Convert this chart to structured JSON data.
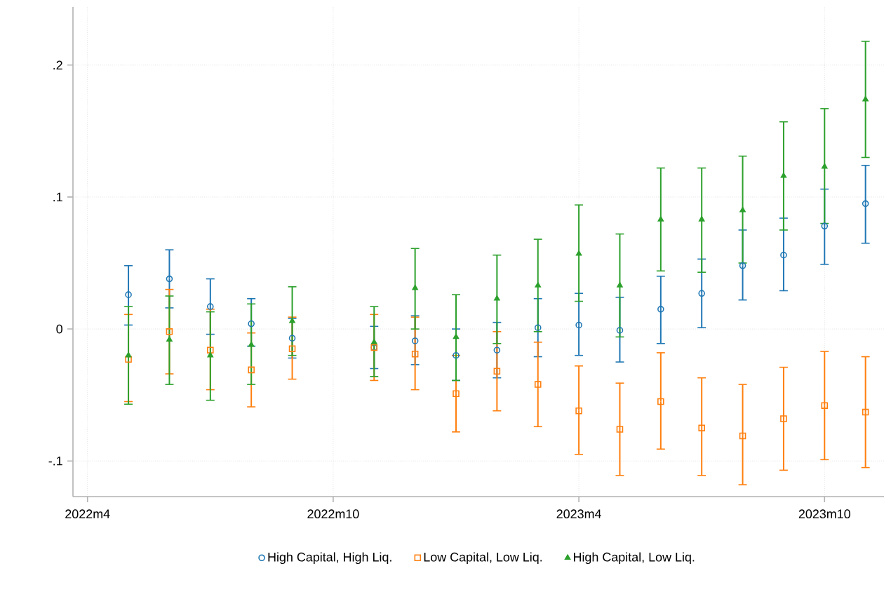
{
  "chart_data": {
    "type": "scatter",
    "x": [
      "2022-05",
      "2022-06",
      "2022-07",
      "2022-08",
      "2022-09",
      "2022-11",
      "2022-12",
      "2023-01",
      "2023-02",
      "2023-03",
      "2023-04",
      "2023-05",
      "2023-06",
      "2023-07",
      "2023-08",
      "2023-09",
      "2023-10",
      "2023-11"
    ],
    "series": [
      {
        "name": "High Capital, High Liq.",
        "color": "#1f77b4",
        "marker": "circle",
        "values": [
          0.026,
          0.038,
          0.017,
          0.004,
          -0.007,
          -0.014,
          -0.009,
          -0.02,
          -0.016,
          0.001,
          0.003,
          -0.001,
          0.015,
          0.027,
          0.048,
          0.056,
          0.078,
          0.095
        ],
        "errors": [
          [
            0.003,
            0.048
          ],
          [
            0.016,
            0.06
          ],
          [
            -0.004,
            0.038
          ],
          [
            -0.013,
            0.023
          ],
          [
            -0.022,
            0.008
          ],
          [
            -0.03,
            0.002
          ],
          [
            -0.027,
            0.01
          ],
          [
            -0.039,
            0.0
          ],
          [
            -0.037,
            0.005
          ],
          [
            -0.021,
            0.023
          ],
          [
            -0.02,
            0.027
          ],
          [
            -0.025,
            0.024
          ],
          [
            -0.011,
            0.04
          ],
          [
            0.001,
            0.053
          ],
          [
            0.022,
            0.075
          ],
          [
            0.029,
            0.084
          ],
          [
            0.049,
            0.106
          ],
          [
            0.065,
            0.124
          ]
        ]
      },
      {
        "name": "Low Capital, Low Liq.",
        "color": "#ff7f0e",
        "marker": "square",
        "values": [
          -0.023,
          -0.002,
          -0.016,
          -0.031,
          -0.015,
          -0.014,
          -0.019,
          -0.049,
          -0.032,
          -0.042,
          -0.062,
          -0.076,
          -0.055,
          -0.075,
          -0.081,
          -0.068,
          -0.058,
          -0.063
        ],
        "errors": [
          [
            -0.055,
            0.011
          ],
          [
            -0.034,
            0.03
          ],
          [
            -0.046,
            0.015
          ],
          [
            -0.059,
            -0.003
          ],
          [
            -0.038,
            0.009
          ],
          [
            -0.039,
            0.011
          ],
          [
            -0.046,
            0.009
          ],
          [
            -0.078,
            -0.02
          ],
          [
            -0.062,
            -0.002
          ],
          [
            -0.074,
            -0.01
          ],
          [
            -0.095,
            -0.028
          ],
          [
            -0.111,
            -0.041
          ],
          [
            -0.091,
            -0.018
          ],
          [
            -0.111,
            -0.037
          ],
          [
            -0.118,
            -0.042
          ],
          [
            -0.107,
            -0.029
          ],
          [
            -0.099,
            -0.017
          ],
          [
            -0.105,
            -0.021
          ]
        ]
      },
      {
        "name": "High Capital, Low Liq.",
        "color": "#2ca02c",
        "marker": "triangle",
        "values": [
          -0.02,
          -0.008,
          -0.02,
          -0.012,
          0.006,
          -0.01,
          0.031,
          -0.006,
          0.023,
          0.033,
          0.057,
          0.033,
          0.083,
          0.083,
          0.09,
          0.116,
          0.123,
          0.174
        ],
        "errors": [
          [
            -0.057,
            0.017
          ],
          [
            -0.042,
            0.025
          ],
          [
            -0.054,
            0.013
          ],
          [
            -0.042,
            0.019
          ],
          [
            -0.02,
            0.032
          ],
          [
            -0.036,
            0.017
          ],
          [
            0.0,
            0.061
          ],
          [
            -0.039,
            0.026
          ],
          [
            -0.011,
            0.056
          ],
          [
            -0.002,
            0.068
          ],
          [
            0.021,
            0.094
          ],
          [
            -0.006,
            0.072
          ],
          [
            0.044,
            0.122
          ],
          [
            0.043,
            0.122
          ],
          [
            0.05,
            0.131
          ],
          [
            0.075,
            0.157
          ],
          [
            0.08,
            0.167
          ],
          [
            0.13,
            0.218
          ]
        ]
      }
    ],
    "xlim": [
      "2022-03-21",
      "2023-11-15"
    ],
    "xticks": [
      {
        "value": "2022-04",
        "label": "2022m4"
      },
      {
        "value": "2022-10",
        "label": "2022m10"
      },
      {
        "value": "2023-04",
        "label": "2023m4"
      },
      {
        "value": "2023-10",
        "label": "2023m10"
      }
    ],
    "ylim": [
      -0.127,
      0.244
    ],
    "yticks": [
      {
        "value": -0.1,
        "label": "-.1"
      },
      {
        "value": 0,
        "label": "0"
      },
      {
        "value": 0.1,
        "label": ".1"
      },
      {
        "value": 0.2,
        "label": ".2"
      }
    ],
    "grid": true,
    "legend": "bottom"
  }
}
